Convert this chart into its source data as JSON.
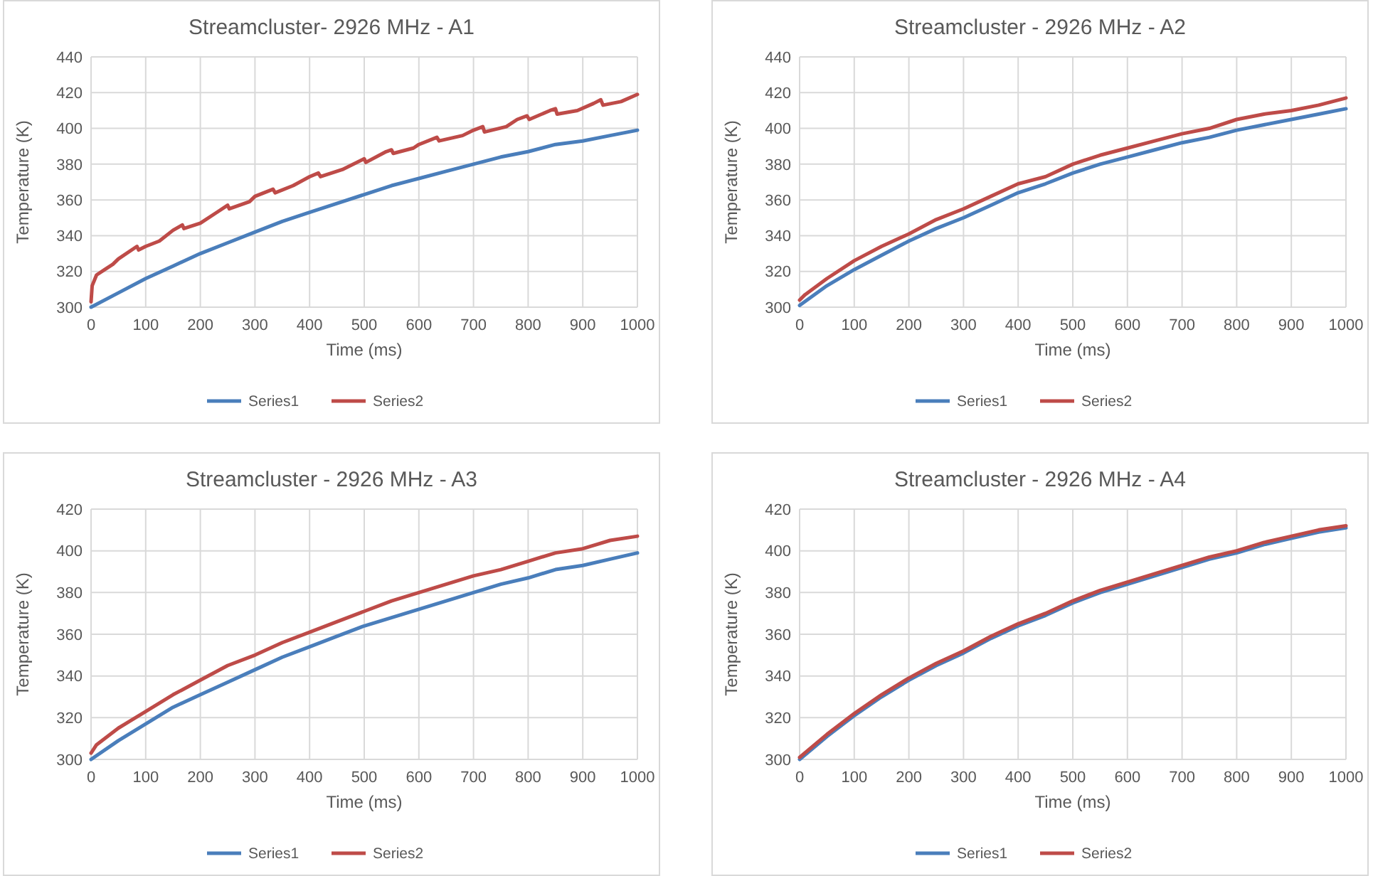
{
  "chart_data": [
    {
      "type": "line",
      "title": "Streamcluster- 2926 MHz - A1",
      "xlabel": "Time (ms)",
      "ylabel": "Temperature (K)",
      "xlim": [
        0,
        1000
      ],
      "xticks": [
        0,
        100,
        200,
        300,
        400,
        500,
        600,
        700,
        800,
        900,
        1000
      ],
      "ylim": [
        300,
        440
      ],
      "yticks": [
        300,
        320,
        340,
        360,
        380,
        400,
        420,
        440
      ],
      "grid": true,
      "legend": "bottom",
      "marker": "none",
      "series": [
        {
          "name": "Series1",
          "color": "#4a7ebb",
          "x": [
            0,
            50,
            100,
            150,
            200,
            250,
            300,
            350,
            400,
            450,
            500,
            550,
            600,
            650,
            700,
            750,
            800,
            850,
            900,
            950,
            1000
          ],
          "values": [
            300,
            308,
            316,
            323,
            330,
            336,
            342,
            348,
            353,
            358,
            363,
            368,
            372,
            376,
            380,
            384,
            387,
            391,
            393,
            396,
            399
          ]
        },
        {
          "name": "Series2",
          "color": "#be4b48",
          "x": [
            0,
            2,
            10,
            25,
            40,
            50,
            84,
            87,
            100,
            125,
            150,
            167,
            170,
            200,
            230,
            250,
            253,
            290,
            300,
            333,
            337,
            370,
            400,
            416,
            420,
            460,
            500,
            503,
            540,
            550,
            553,
            590,
            600,
            633,
            637,
            680,
            700,
            717,
            720,
            760,
            780,
            798,
            802,
            840,
            850,
            853,
            890,
            920,
            933,
            937,
            970,
            1000
          ],
          "values": [
            303,
            312,
            318,
            321,
            324,
            327,
            334,
            332,
            334,
            337,
            343,
            346,
            344,
            347,
            353,
            357,
            355,
            359,
            362,
            366,
            364,
            368,
            373,
            375,
            373,
            377,
            383,
            381,
            387,
            388,
            386,
            389,
            391,
            395,
            393,
            396,
            399,
            401,
            398,
            401,
            405,
            407,
            405,
            410,
            411,
            408,
            410,
            414,
            416,
            413,
            415,
            419
          ]
        }
      ]
    },
    {
      "type": "line",
      "title": "Streamcluster - 2926 MHz - A2",
      "xlabel": "Time (ms)",
      "ylabel": "Temperature (K)",
      "xlim": [
        0,
        1000
      ],
      "xticks": [
        0,
        100,
        200,
        300,
        400,
        500,
        600,
        700,
        800,
        900,
        1000
      ],
      "ylim": [
        300,
        440
      ],
      "yticks": [
        300,
        320,
        340,
        360,
        380,
        400,
        420,
        440
      ],
      "grid": true,
      "legend": "bottom",
      "marker": "none",
      "series": [
        {
          "name": "Series1",
          "color": "#4a7ebb",
          "x": [
            0,
            50,
            100,
            150,
            200,
            250,
            300,
            350,
            400,
            450,
            500,
            550,
            600,
            650,
            700,
            750,
            800,
            850,
            900,
            950,
            1000
          ],
          "values": [
            301,
            312,
            321,
            329,
            337,
            344,
            350,
            357,
            364,
            369,
            375,
            380,
            384,
            388,
            392,
            395,
            399,
            402,
            405,
            408,
            411
          ]
        },
        {
          "name": "Series2",
          "color": "#be4b48",
          "x": [
            0,
            10,
            50,
            100,
            150,
            200,
            250,
            300,
            350,
            400,
            450,
            500,
            550,
            600,
            650,
            700,
            750,
            800,
            850,
            900,
            950,
            1000
          ],
          "values": [
            304,
            307,
            316,
            326,
            334,
            341,
            349,
            355,
            362,
            369,
            373,
            380,
            385,
            389,
            393,
            397,
            400,
            405,
            408,
            410,
            413,
            417
          ]
        }
      ]
    },
    {
      "type": "line",
      "title": "Streamcluster - 2926 MHz - A3",
      "xlabel": "Time (ms)",
      "ylabel": "Temperature (K)",
      "xlim": [
        0,
        1000
      ],
      "xticks": [
        0,
        100,
        200,
        300,
        400,
        500,
        600,
        700,
        800,
        900,
        1000
      ],
      "ylim": [
        300,
        420
      ],
      "yticks": [
        300,
        320,
        340,
        360,
        380,
        400,
        420
      ],
      "grid": true,
      "legend": "bottom",
      "marker": "none",
      "series": [
        {
          "name": "Series1",
          "color": "#4a7ebb",
          "x": [
            0,
            50,
            100,
            150,
            200,
            250,
            300,
            350,
            400,
            450,
            500,
            550,
            600,
            650,
            700,
            750,
            800,
            850,
            900,
            950,
            1000
          ],
          "values": [
            300,
            309,
            317,
            325,
            331,
            337,
            343,
            349,
            354,
            359,
            364,
            368,
            372,
            376,
            380,
            384,
            387,
            391,
            393,
            396,
            399
          ]
        },
        {
          "name": "Series2",
          "color": "#be4b48",
          "x": [
            0,
            10,
            50,
            100,
            150,
            200,
            250,
            300,
            350,
            400,
            450,
            500,
            550,
            600,
            650,
            700,
            750,
            800,
            850,
            900,
            950,
            1000
          ],
          "values": [
            303,
            307,
            315,
            323,
            331,
            338,
            345,
            350,
            356,
            361,
            366,
            371,
            376,
            380,
            384,
            388,
            391,
            395,
            399,
            401,
            405,
            407
          ]
        }
      ]
    },
    {
      "type": "line",
      "title": "Streamcluster - 2926 MHz - A4",
      "xlabel": "Time (ms)",
      "ylabel": "Temperature (K)",
      "xlim": [
        0,
        1000
      ],
      "xticks": [
        0,
        100,
        200,
        300,
        400,
        500,
        600,
        700,
        800,
        900,
        1000
      ],
      "ylim": [
        300,
        420
      ],
      "yticks": [
        300,
        320,
        340,
        360,
        380,
        400,
        420
      ],
      "grid": true,
      "legend": "bottom",
      "marker": "none",
      "series": [
        {
          "name": "Series1",
          "color": "#4a7ebb",
          "x": [
            0,
            50,
            100,
            150,
            200,
            250,
            300,
            350,
            400,
            450,
            500,
            550,
            600,
            650,
            700,
            750,
            800,
            850,
            900,
            950,
            1000
          ],
          "values": [
            300,
            311,
            321,
            330,
            338,
            345,
            351,
            358,
            364,
            369,
            375,
            380,
            384,
            388,
            392,
            396,
            399,
            403,
            406,
            409,
            411
          ]
        },
        {
          "name": "Series2",
          "color": "#be4b48",
          "x": [
            0,
            50,
            100,
            150,
            200,
            250,
            300,
            350,
            400,
            450,
            500,
            550,
            600,
            650,
            700,
            750,
            800,
            850,
            900,
            950,
            1000
          ],
          "values": [
            301,
            312,
            322,
            331,
            339,
            346,
            352,
            359,
            365,
            370,
            376,
            381,
            385,
            389,
            393,
            397,
            400,
            404,
            407,
            410,
            412
          ]
        }
      ]
    }
  ]
}
